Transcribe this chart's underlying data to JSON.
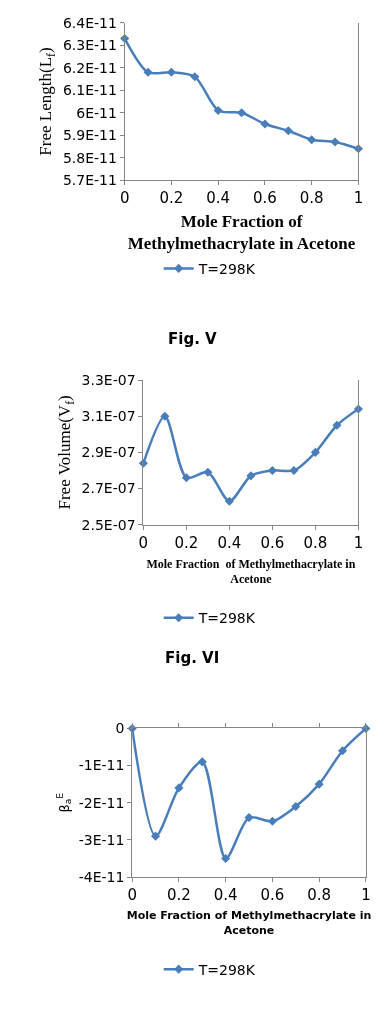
{
  "chart_data": [
    {
      "type": "line",
      "xlabel": "Mole Fraction of\nMethylmethacrylate in Acetone",
      "ylabel": "Free Length(L$_{f}$)",
      "annotations": [
        "Fig. V"
      ],
      "x": [
        0,
        0.1,
        0.2,
        0.3,
        0.4,
        0.5,
        0.6,
        0.7,
        0.8,
        0.9,
        1
      ],
      "series": [
        {
          "name": "T=298K",
          "color": "#4a7ebb",
          "values": [
            6.33e-11,
            6.18e-11,
            6.18e-11,
            6.16e-11,
            6.01e-11,
            6e-11,
            5.95e-11,
            5.92e-11,
            5.88e-11,
            5.87e-11,
            5.84e-11
          ]
        }
      ],
      "xlim": [
        0,
        1
      ],
      "xticks": [
        0,
        0.2,
        0.4,
        0.6,
        0.8,
        1
      ],
      "ylim": [
        5.7e-11,
        6.4e-11
      ],
      "yticks": [
        {
          "value": 5.7e-11,
          "label": "5.7E-11"
        },
        {
          "value": 5.8e-11,
          "label": "5.8E-11"
        },
        {
          "value": 5.9e-11,
          "label": "5.9E-11"
        },
        {
          "value": 6e-11,
          "label": "6E-11"
        },
        {
          "value": 6.1e-11,
          "label": "6.1E-11"
        },
        {
          "value": 6.2e-11,
          "label": "6.2E-11"
        },
        {
          "value": 6.3e-11,
          "label": "6.3E-11"
        },
        {
          "value": 6.4e-11,
          "label": "6.4E-11"
        }
      ],
      "legend": "bottom",
      "marker": "diamond",
      "line_style": "solid"
    },
    {
      "type": "line",
      "xlabel": "Mole Fraction  of Methylmethacrylate in\nAcetone",
      "ylabel": "Free Volume(V$_{f}$)",
      "annotations": [
        "Fig. VI"
      ],
      "x": [
        0,
        0.1,
        0.2,
        0.3,
        0.4,
        0.5,
        0.6,
        0.7,
        0.8,
        0.9,
        1
      ],
      "series": [
        {
          "name": "T=298K",
          "color": "#4a7ebb",
          "values": [
            2.84e-07,
            3.1e-07,
            2.76e-07,
            2.79e-07,
            2.63e-07,
            2.77e-07,
            2.8e-07,
            2.8e-07,
            2.9e-07,
            3.05e-07,
            3.14e-07
          ]
        }
      ],
      "xlim": [
        0,
        1
      ],
      "xticks": [
        0,
        0.2,
        0.4,
        0.6,
        0.8,
        1
      ],
      "ylim": [
        2.5e-07,
        3.3e-07
      ],
      "yticks": [
        {
          "value": 2.5e-07,
          "label": "2.5E-07"
        },
        {
          "value": 2.7e-07,
          "label": "2.7E-07"
        },
        {
          "value": 2.9e-07,
          "label": "2.9E-07"
        },
        {
          "value": 3.1e-07,
          "label": "3.1E-07"
        },
        {
          "value": 3.3e-07,
          "label": "3.3E-07"
        }
      ],
      "legend": "bottom",
      "marker": "diamond",
      "line_style": "solid"
    },
    {
      "type": "line",
      "xlabel": "Mole Fraction of Methylmethacrylate in\nAcetone",
      "ylabel": "β$_{a}$$^{E}$",
      "x": [
        0,
        0.1,
        0.2,
        0.3,
        0.4,
        0.5,
        0.6,
        0.7,
        0.8,
        0.9,
        1
      ],
      "series": [
        {
          "name": "T=298K",
          "color": "#4a7ebb",
          "values": [
            0,
            -2.9e-11,
            -1.6e-11,
            -9e-12,
            -3.5e-11,
            -2.4e-11,
            -2.5e-11,
            -2.1e-11,
            -1.5e-11,
            -6e-12,
            0
          ]
        }
      ],
      "xlim": [
        0,
        1
      ],
      "xticks": [
        0,
        0.2,
        0.4,
        0.6,
        0.8,
        1
      ],
      "ylim": [
        -4e-11,
        0
      ],
      "yticks": [
        {
          "value": -4e-11,
          "label": "-4E-11"
        },
        {
          "value": -3e-11,
          "label": "-3E-11"
        },
        {
          "value": -2e-11,
          "label": "-2E-11"
        },
        {
          "value": -1e-11,
          "label": "-1E-11"
        },
        {
          "value": 0,
          "label": "0"
        }
      ],
      "legend": "bottom",
      "marker": "diamond",
      "line_style": "solid"
    }
  ]
}
